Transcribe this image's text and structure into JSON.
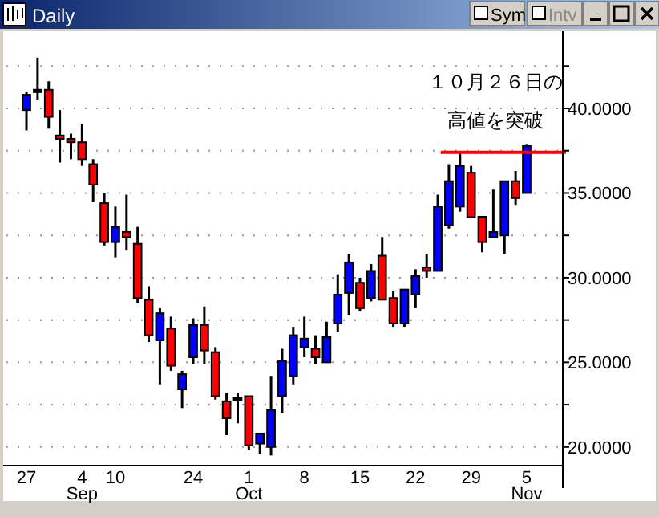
{
  "chart_data": {
    "type": "candlestick",
    "title": "Daily",
    "categories": [
      "27",
      null,
      null,
      null,
      null,
      "4\nSep",
      null,
      null,
      "10",
      null,
      null,
      null,
      null,
      null,
      null,
      "24",
      null,
      null,
      null,
      null,
      "1\nOct",
      null,
      null,
      null,
      null,
      "8",
      null,
      null,
      null,
      null,
      "15",
      null,
      null,
      null,
      null,
      "22",
      null,
      null,
      null,
      null,
      "29",
      null,
      null,
      null,
      null,
      "5\nNov"
    ],
    "ohlc": [
      [
        39.9,
        41.0,
        38.7,
        40.8
      ],
      [
        41.0,
        43.0,
        40.5,
        41.1
      ],
      [
        41.1,
        41.6,
        38.8,
        39.5
      ],
      [
        38.4,
        39.9,
        36.8,
        38.2
      ],
      [
        38.2,
        38.5,
        37.0,
        38.0
      ],
      [
        38.0,
        39.1,
        36.6,
        37.0
      ],
      [
        36.7,
        37.0,
        34.5,
        35.5
      ],
      [
        34.4,
        35.0,
        31.9,
        32.1
      ],
      [
        32.1,
        34.2,
        31.2,
        33.0
      ],
      [
        32.7,
        34.9,
        31.6,
        32.4
      ],
      [
        32.0,
        33.0,
        28.5,
        28.8
      ],
      [
        28.7,
        29.5,
        26.2,
        26.6
      ],
      [
        26.3,
        28.2,
        23.7,
        27.9
      ],
      [
        27.0,
        27.7,
        24.5,
        24.8
      ],
      [
        23.4,
        24.5,
        22.3,
        24.3
      ],
      [
        25.3,
        27.6,
        24.9,
        27.2
      ],
      [
        27.2,
        28.3,
        24.9,
        25.7
      ],
      [
        25.6,
        25.9,
        22.8,
        23.0
      ],
      [
        22.7,
        23.2,
        20.7,
        21.7
      ],
      [
        22.85,
        23.2,
        21.4,
        22.9
      ],
      [
        23.0,
        23.0,
        19.8,
        20.1
      ],
      [
        20.2,
        20.8,
        19.6,
        20.8
      ],
      [
        20.0,
        24.2,
        19.5,
        22.2
      ],
      [
        23.0,
        25.8,
        22.0,
        25.1
      ],
      [
        24.2,
        27.1,
        23.7,
        26.6
      ],
      [
        25.9,
        27.7,
        25.3,
        26.4
      ],
      [
        25.8,
        26.6,
        24.9,
        25.3
      ],
      [
        25.0,
        27.4,
        25.0,
        26.5
      ],
      [
        27.3,
        30.2,
        26.8,
        29.0
      ],
      [
        29.1,
        31.4,
        27.8,
        30.9
      ],
      [
        29.7,
        30.0,
        28.0,
        28.2
      ],
      [
        28.8,
        30.8,
        28.6,
        30.4
      ],
      [
        31.3,
        32.4,
        28.7,
        28.7
      ],
      [
        28.8,
        29.2,
        27.1,
        27.3
      ],
      [
        27.3,
        29.3,
        27.1,
        29.3
      ],
      [
        29.0,
        30.5,
        28.2,
        30.1
      ],
      [
        30.6,
        31.4,
        30.0,
        30.4
      ],
      [
        30.4,
        34.9,
        30.4,
        34.2
      ],
      [
        33.1,
        36.7,
        32.9,
        35.7
      ],
      [
        34.2,
        37.4,
        33.9,
        36.6
      ],
      [
        36.2,
        36.6,
        33.6,
        33.6
      ],
      [
        33.6,
        33.6,
        31.5,
        32.1
      ],
      [
        32.4,
        35.2,
        32.4,
        32.7
      ],
      [
        32.5,
        35.7,
        31.4,
        35.7
      ],
      [
        35.7,
        36.3,
        34.3,
        34.7
      ],
      [
        35.0,
        37.9,
        35.0,
        37.8
      ]
    ],
    "colors": [
      "#0000ff",
      "#000000",
      "#ff0000",
      "#ff0000",
      "#ff0000",
      "#ff0000",
      "#ff0000",
      "#ff0000",
      "#0000ff",
      "#ff0000",
      "#ff0000",
      "#ff0000",
      "#0000ff",
      "#ff0000",
      "#0000ff",
      "#0000ff",
      "#ff0000",
      "#ff0000",
      "#ff0000",
      "#000000",
      "#ff0000",
      "#0000ff",
      "#0000ff",
      "#0000ff",
      "#0000ff",
      "#0000ff",
      "#ff0000",
      "#0000ff",
      "#0000ff",
      "#0000ff",
      "#ff0000",
      "#0000ff",
      "#ff0000",
      "#ff0000",
      "#0000ff",
      "#0000ff",
      "#ff0000",
      "#0000ff",
      "#0000ff",
      "#0000ff",
      "#ff0000",
      "#ff0000",
      "#0000ff",
      "#0000ff",
      "#ff0000",
      "#0000ff"
    ],
    "ylim": [
      18.9,
      44.6
    ],
    "yticks": [
      {
        "value": 20,
        "label": "20.0000"
      },
      {
        "value": 22.5,
        "label": null
      },
      {
        "value": 25,
        "label": "25.0000"
      },
      {
        "value": 27.5,
        "label": null
      },
      {
        "value": 30,
        "label": "30.0000"
      },
      {
        "value": 32.5,
        "label": null
      },
      {
        "value": 35,
        "label": "35.0000"
      },
      {
        "value": 37.5,
        "label": null
      },
      {
        "value": 40,
        "label": "40.0000"
      },
      {
        "value": 42.5,
        "label": null
      }
    ],
    "grid": "y",
    "ref_lines": [
      {
        "axis": "y",
        "value": 37.4,
        "label": "１０月２６日の高値を突破",
        "color": "#ff0000"
      }
    ],
    "annotations": [
      "Sym",
      "Intv"
    ]
  }
}
